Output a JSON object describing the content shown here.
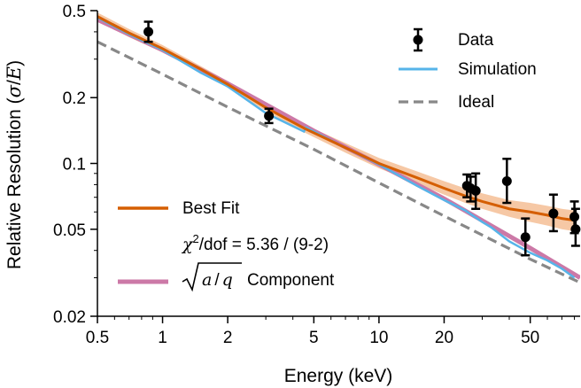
{
  "chart_data": {
    "type": "line",
    "xscale": "log",
    "yscale": "log",
    "xlim": [
      0.5,
      85
    ],
    "ylim": [
      0.02,
      0.5
    ],
    "xlabel": "Energy (keV)",
    "ylabel": {
      "prefix": "Relative Resolution (",
      "sigma": "σ",
      "slash": "/",
      "energy": "E",
      "suffix": ")"
    },
    "xticks": [
      0.5,
      1,
      2,
      5,
      10,
      20,
      50
    ],
    "xtick_labels": [
      "0.5",
      "1",
      "2",
      "5",
      "10",
      "20",
      "50"
    ],
    "yticks": [
      0.02,
      0.05,
      0.1,
      0.2,
      0.5
    ],
    "ytick_labels": [
      "0.02",
      "0.05",
      "0.1",
      "0.2",
      "0.5"
    ],
    "colors": {
      "data": "#000000",
      "simulation": "#56b4e9",
      "ideal": "#888888",
      "best_fit": "#d55e00",
      "best_fit_band": "#f6c8a5",
      "component": "#cc79a7"
    },
    "legend_top": {
      "data_label": "Data",
      "simulation_label": "Simulation",
      "ideal_label": "Ideal"
    },
    "legend_bottom": {
      "best_fit_label": "Best Fit",
      "chi2_prefix": "χ",
      "chi2_exp": "2",
      "chi2_rest": "/dof = 5.36 / (9-2)",
      "component_a": "a",
      "component_slash": "/",
      "component_q": "q",
      "component_label": "Component"
    },
    "data_points": [
      {
        "x": 0.86,
        "y": 0.4,
        "yerr_low": 0.04,
        "yerr_high": 0.045
      },
      {
        "x": 3.1,
        "y": 0.165,
        "yerr_low": 0.012,
        "yerr_high": 0.013
      },
      {
        "x": 25.5,
        "y": 0.079,
        "yerr_low": 0.009,
        "yerr_high": 0.01
      },
      {
        "x": 26.5,
        "y": 0.077,
        "yerr_low": 0.01,
        "yerr_high": 0.01
      },
      {
        "x": 28.0,
        "y": 0.075,
        "yerr_low": 0.013,
        "yerr_high": 0.015
      },
      {
        "x": 39.0,
        "y": 0.083,
        "yerr_low": 0.017,
        "yerr_high": 0.022
      },
      {
        "x": 47.5,
        "y": 0.046,
        "yerr_low": 0.008,
        "yerr_high": 0.01
      },
      {
        "x": 64.0,
        "y": 0.059,
        "yerr_low": 0.01,
        "yerr_high": 0.013
      },
      {
        "x": 80.0,
        "y": 0.057,
        "yerr_low": 0.009,
        "yerr_high": 0.01
      },
      {
        "x": 81.0,
        "y": 0.05,
        "yerr_low": 0.008,
        "yerr_high": 0.012
      }
    ],
    "simulation": {
      "x": [
        0.5,
        0.7,
        1.0,
        1.5,
        2.0,
        3.0,
        4.5,
        4.6,
        7,
        10,
        15,
        20,
        25,
        30,
        33,
        40,
        50,
        60,
        70,
        80
      ],
      "y": [
        0.465,
        0.39,
        0.33,
        0.26,
        0.225,
        0.17,
        0.14,
        0.146,
        0.118,
        0.099,
        0.079,
        0.068,
        0.061,
        0.054,
        0.051,
        0.044,
        0.039,
        0.036,
        0.033,
        0.03
      ]
    },
    "ideal": {
      "x": [
        0.5,
        1,
        2,
        5,
        10,
        20,
        50,
        85
      ],
      "y": [
        0.36,
        0.256,
        0.181,
        0.116,
        0.0815,
        0.0575,
        0.0365,
        0.0285
      ]
    },
    "best_fit": {
      "x": [
        0.5,
        0.7,
        1.0,
        1.5,
        2.0,
        3.0,
        4.5,
        7,
        10,
        15,
        20,
        25,
        30,
        40,
        50,
        60,
        70,
        80
      ],
      "y": [
        0.47,
        0.395,
        0.335,
        0.27,
        0.23,
        0.18,
        0.145,
        0.118,
        0.1,
        0.086,
        0.077,
        0.071,
        0.067,
        0.062,
        0.06,
        0.058,
        0.056,
        0.055
      ],
      "band_low": [
        0.45,
        0.378,
        0.322,
        0.261,
        0.222,
        0.174,
        0.139,
        0.112,
        0.095,
        0.081,
        0.072,
        0.066,
        0.062,
        0.057,
        0.054,
        0.052,
        0.05,
        0.049
      ],
      "band_high": [
        0.49,
        0.412,
        0.348,
        0.279,
        0.238,
        0.186,
        0.151,
        0.124,
        0.106,
        0.092,
        0.083,
        0.077,
        0.073,
        0.068,
        0.066,
        0.064,
        0.062,
        0.061
      ]
    },
    "component": {
      "x": [
        0.5,
        1,
        2,
        5,
        10,
        20,
        50,
        85
      ],
      "y": [
        0.455,
        0.33,
        0.232,
        0.141,
        0.099,
        0.069,
        0.041,
        0.03
      ]
    }
  }
}
